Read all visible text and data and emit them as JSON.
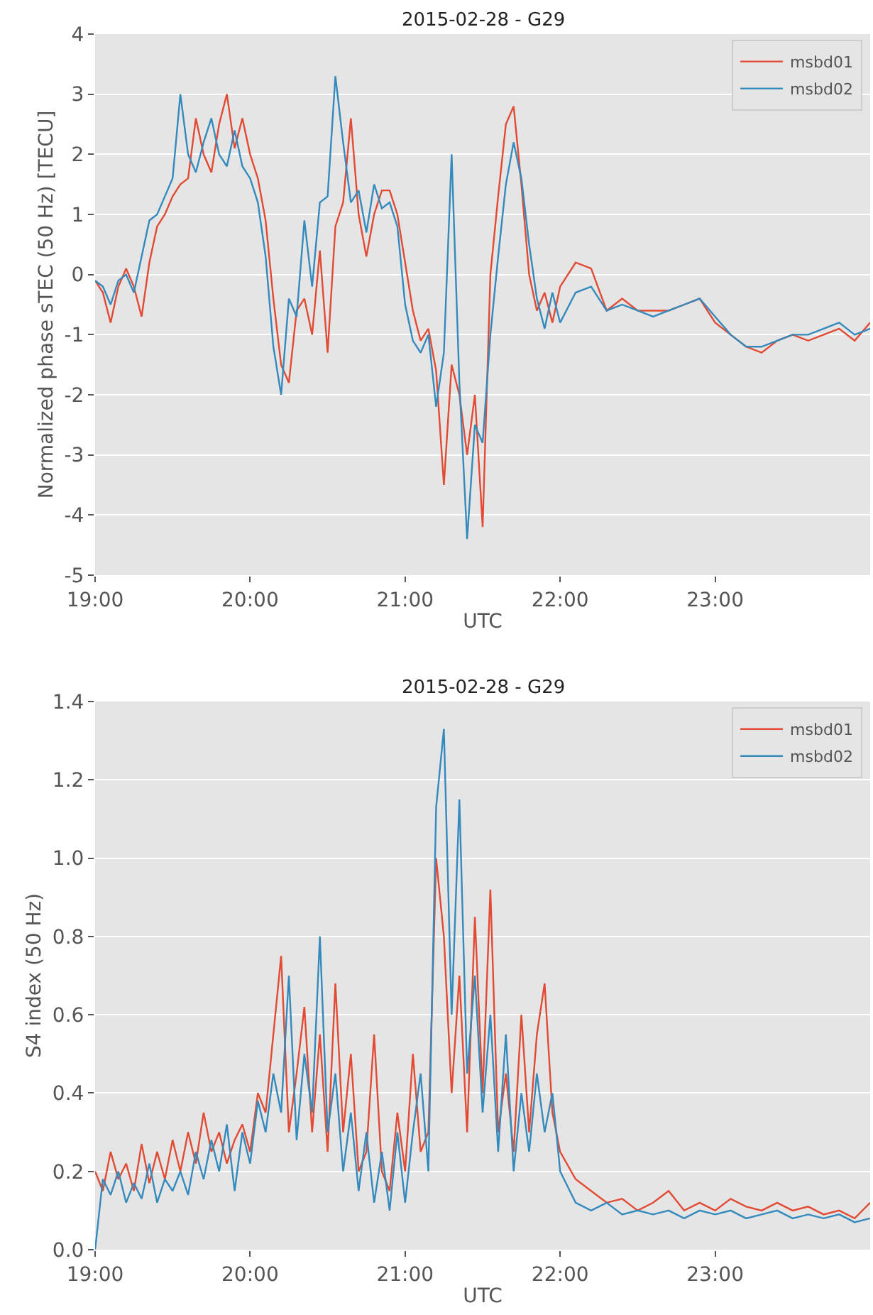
{
  "chart_data": [
    {
      "type": "line",
      "title": "2015-02-28 - G29",
      "xlabel": "UTC",
      "ylabel": "Normalized phase sTEC (50 Hz) [TECU]",
      "x": [
        19.0,
        19.05,
        19.1,
        19.15,
        19.2,
        19.25,
        19.3,
        19.35,
        19.4,
        19.45,
        19.5,
        19.55,
        19.6,
        19.65,
        19.7,
        19.75,
        19.8,
        19.85,
        19.9,
        19.95,
        20.0,
        20.05,
        20.1,
        20.15,
        20.2,
        20.25,
        20.3,
        20.35,
        20.4,
        20.45,
        20.5,
        20.55,
        20.6,
        20.65,
        20.7,
        20.75,
        20.8,
        20.85,
        20.9,
        20.95,
        21.0,
        21.05,
        21.1,
        21.15,
        21.2,
        21.25,
        21.3,
        21.35,
        21.4,
        21.45,
        21.5,
        21.55,
        21.6,
        21.65,
        21.7,
        21.75,
        21.8,
        21.85,
        21.9,
        21.95,
        22.0,
        22.1,
        22.2,
        22.3,
        22.4,
        22.5,
        22.6,
        22.7,
        22.8,
        22.9,
        23.0,
        23.1,
        23.2,
        23.3,
        23.4,
        23.5,
        23.6,
        23.7,
        23.8,
        23.9,
        24.0
      ],
      "series": [
        {
          "name": "msbd01",
          "color": "#e24a33",
          "values": [
            -0.1,
            -0.3,
            -0.8,
            -0.2,
            0.1,
            -0.2,
            -0.7,
            0.2,
            0.8,
            1.0,
            1.3,
            1.5,
            1.6,
            2.6,
            2.0,
            1.7,
            2.5,
            3.0,
            2.1,
            2.6,
            2.0,
            1.6,
            0.9,
            -0.4,
            -1.5,
            -1.8,
            -0.6,
            -0.4,
            -1.0,
            0.4,
            -1.3,
            0.8,
            1.2,
            2.6,
            1.0,
            0.3,
            1.0,
            1.4,
            1.4,
            1.0,
            0.2,
            -0.6,
            -1.1,
            -0.9,
            -1.6,
            -3.5,
            -1.5,
            -2.0,
            -3.0,
            -2.0,
            -4.2,
            0.0,
            1.3,
            2.5,
            2.8,
            1.5,
            0.0,
            -0.6,
            -0.3,
            -0.8,
            -0.2,
            0.2,
            0.1,
            -0.6,
            -0.4,
            -0.6,
            -0.6,
            -0.6,
            -0.5,
            -0.4,
            -0.8,
            -1.0,
            -1.2,
            -1.3,
            -1.1,
            -1.0,
            -1.1,
            -1.0,
            -0.9,
            -1.1,
            -0.8
          ]
        },
        {
          "name": "msbd02",
          "color": "#348abd",
          "values": [
            -0.1,
            -0.2,
            -0.5,
            -0.1,
            0.0,
            -0.3,
            0.3,
            0.9,
            1.0,
            1.3,
            1.6,
            3.0,
            2.0,
            1.7,
            2.2,
            2.6,
            2.0,
            1.8,
            2.4,
            1.8,
            1.6,
            1.2,
            0.3,
            -1.2,
            -2.0,
            -0.4,
            -0.7,
            0.9,
            -0.2,
            1.2,
            1.3,
            3.3,
            2.2,
            1.2,
            1.4,
            0.7,
            1.5,
            1.1,
            1.2,
            0.8,
            -0.5,
            -1.1,
            -1.3,
            -1.0,
            -2.2,
            -1.3,
            2.0,
            -1.8,
            -4.4,
            -2.5,
            -2.8,
            -1.0,
            0.3,
            1.5,
            2.2,
            1.6,
            0.5,
            -0.4,
            -0.9,
            -0.3,
            -0.8,
            -0.3,
            -0.2,
            -0.6,
            -0.5,
            -0.6,
            -0.7,
            -0.6,
            -0.5,
            -0.4,
            -0.7,
            -1.0,
            -1.2,
            -1.2,
            -1.1,
            -1.0,
            -1.0,
            -0.9,
            -0.8,
            -1.0,
            -0.9
          ]
        }
      ],
      "xlim": [
        19,
        24
      ],
      "xticks": [
        {
          "value": 19,
          "label": "19:00"
        },
        {
          "value": 20,
          "label": "20:00"
        },
        {
          "value": 21,
          "label": "21:00"
        },
        {
          "value": 22,
          "label": "22:00"
        },
        {
          "value": 23,
          "label": "23:00"
        }
      ],
      "ylim": [
        -5,
        4
      ],
      "yticks": [
        -5,
        -4,
        -3,
        -2,
        -1,
        0,
        1,
        2,
        3,
        4
      ],
      "grid": "y",
      "legend": "top right"
    },
    {
      "type": "line",
      "title": "2015-02-28 - G29",
      "xlabel": "UTC",
      "ylabel": "S4 index (50 Hz)",
      "x": [
        19.0,
        19.05,
        19.1,
        19.15,
        19.2,
        19.25,
        19.3,
        19.35,
        19.4,
        19.45,
        19.5,
        19.55,
        19.6,
        19.65,
        19.7,
        19.75,
        19.8,
        19.85,
        19.9,
        19.95,
        20.0,
        20.05,
        20.1,
        20.15,
        20.2,
        20.25,
        20.3,
        20.35,
        20.4,
        20.45,
        20.5,
        20.55,
        20.6,
        20.65,
        20.7,
        20.75,
        20.8,
        20.85,
        20.9,
        20.95,
        21.0,
        21.05,
        21.1,
        21.15,
        21.2,
        21.25,
        21.3,
        21.35,
        21.4,
        21.45,
        21.5,
        21.55,
        21.6,
        21.65,
        21.7,
        21.75,
        21.8,
        21.85,
        21.9,
        21.95,
        22.0,
        22.1,
        22.2,
        22.3,
        22.4,
        22.5,
        22.6,
        22.7,
        22.8,
        22.9,
        23.0,
        23.1,
        23.2,
        23.3,
        23.4,
        23.5,
        23.6,
        23.7,
        23.8,
        23.9,
        24.0
      ],
      "series": [
        {
          "name": "msbd01",
          "color": "#e24a33",
          "values": [
            0.2,
            0.15,
            0.25,
            0.18,
            0.22,
            0.15,
            0.27,
            0.17,
            0.25,
            0.18,
            0.28,
            0.2,
            0.3,
            0.22,
            0.35,
            0.25,
            0.3,
            0.22,
            0.28,
            0.32,
            0.25,
            0.4,
            0.35,
            0.55,
            0.75,
            0.3,
            0.45,
            0.62,
            0.3,
            0.55,
            0.25,
            0.68,
            0.3,
            0.5,
            0.2,
            0.25,
            0.55,
            0.2,
            0.15,
            0.35,
            0.2,
            0.5,
            0.25,
            0.3,
            1.0,
            0.8,
            0.4,
            0.7,
            0.3,
            0.85,
            0.4,
            0.92,
            0.3,
            0.45,
            0.25,
            0.6,
            0.3,
            0.55,
            0.68,
            0.35,
            0.25,
            0.18,
            0.15,
            0.12,
            0.13,
            0.1,
            0.12,
            0.15,
            0.1,
            0.12,
            0.1,
            0.13,
            0.11,
            0.1,
            0.12,
            0.1,
            0.11,
            0.09,
            0.1,
            0.08,
            0.12
          ]
        },
        {
          "name": "msbd02",
          "color": "#348abd",
          "values": [
            0.0,
            0.18,
            0.14,
            0.2,
            0.12,
            0.17,
            0.13,
            0.22,
            0.12,
            0.18,
            0.15,
            0.2,
            0.14,
            0.25,
            0.18,
            0.28,
            0.2,
            0.32,
            0.15,
            0.3,
            0.22,
            0.38,
            0.3,
            0.45,
            0.35,
            0.7,
            0.28,
            0.5,
            0.35,
            0.8,
            0.3,
            0.45,
            0.2,
            0.35,
            0.15,
            0.3,
            0.12,
            0.25,
            0.1,
            0.3,
            0.12,
            0.3,
            0.45,
            0.2,
            1.13,
            1.33,
            0.6,
            1.15,
            0.45,
            0.7,
            0.35,
            0.6,
            0.25,
            0.55,
            0.2,
            0.4,
            0.25,
            0.45,
            0.3,
            0.4,
            0.2,
            0.12,
            0.1,
            0.12,
            0.09,
            0.1,
            0.09,
            0.1,
            0.08,
            0.1,
            0.09,
            0.1,
            0.08,
            0.09,
            0.1,
            0.08,
            0.09,
            0.08,
            0.09,
            0.07,
            0.08
          ]
        }
      ],
      "xlim": [
        19,
        24
      ],
      "xticks": [
        {
          "value": 19,
          "label": "19:00"
        },
        {
          "value": 20,
          "label": "20:00"
        },
        {
          "value": 21,
          "label": "21:00"
        },
        {
          "value": 22,
          "label": "22:00"
        },
        {
          "value": 23,
          "label": "23:00"
        }
      ],
      "ylim": [
        0,
        1.4
      ],
      "yticks": [
        {
          "value": 0,
          "label": "0.0"
        },
        0.2,
        0.4,
        0.6,
        0.8,
        {
          "value": 1,
          "label": "1.0"
        },
        1.2,
        1.4
      ],
      "grid": "y",
      "legend": "top right"
    }
  ]
}
